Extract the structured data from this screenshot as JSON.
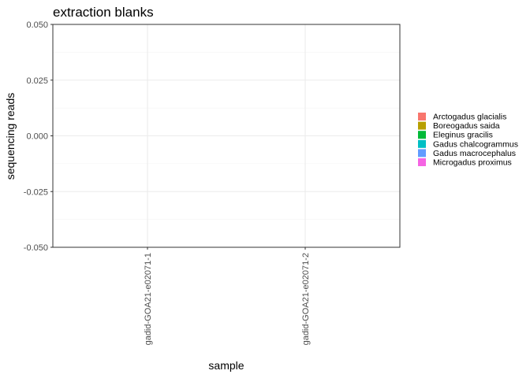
{
  "chart_data": {
    "type": "bar",
    "title": "extraction blanks",
    "xlabel": "sample",
    "ylabel": "sequencing reads",
    "categories": [
      "gadid-GOA21-e02071-1",
      "gadid-GOA21-e02071-2"
    ],
    "ylim": [
      -0.05,
      0.05
    ],
    "yticks": [
      0.05,
      0.025,
      0.0,
      -0.025,
      -0.05
    ],
    "ytick_labels": [
      "0.050",
      "0.025",
      "0.000",
      "-0.025",
      "-0.050"
    ],
    "grid": true,
    "legend_position": "right",
    "series": [
      {
        "name": "Arctogadus glacialis",
        "color": "#F8766D",
        "values": [
          0,
          0
        ]
      },
      {
        "name": "Boreogadus saida",
        "color": "#B79F00",
        "values": [
          0,
          0
        ]
      },
      {
        "name": "Eleginus gracilis",
        "color": "#00BA38",
        "values": [
          0,
          0
        ]
      },
      {
        "name": "Gadus chalcogrammus",
        "color": "#00BFC4",
        "values": [
          0,
          0
        ]
      },
      {
        "name": "Gadus macrocephalus",
        "color": "#619CFF",
        "values": [
          0,
          0
        ]
      },
      {
        "name": "Microgadus proximus",
        "color": "#F564E3",
        "values": [
          0,
          0
        ]
      }
    ]
  }
}
